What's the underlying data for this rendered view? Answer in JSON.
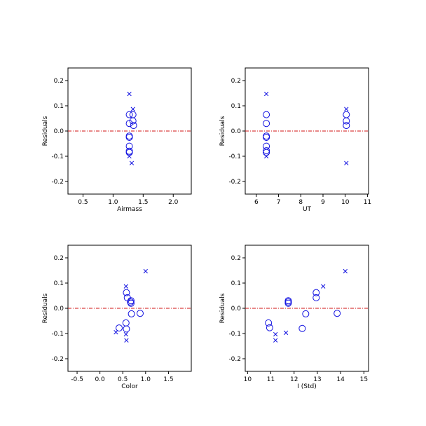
{
  "colors": {
    "points": "#1010e0",
    "zero_line": "#d01010",
    "axes": "#000000"
  },
  "chart_data": [
    {
      "type": "scatter",
      "xlabel": "Airmass",
      "ylabel": "Residuals",
      "xlim": [
        0.25,
        2.3
      ],
      "ylim": [
        -0.25,
        0.25
      ],
      "xticks": [
        0.5,
        1.0,
        1.5,
        2.0
      ],
      "xtick_labels": [
        "0.5",
        "1.0",
        "1.5",
        "2.0"
      ],
      "yticks": [
        -0.2,
        -0.1,
        0.0,
        0.1,
        0.2
      ],
      "ytick_labels": [
        "-0.2",
        "-0.1",
        "0.0",
        "0.1",
        "0.2"
      ],
      "reference_line": 0.0,
      "series": [
        {
          "marker": "circle",
          "x": [
            1.27,
            1.27,
            1.27,
            1.27,
            1.27,
            1.27,
            1.27,
            1.33,
            1.33,
            1.34
          ],
          "y": [
            0.065,
            0.03,
            -0.02,
            -0.025,
            -0.06,
            -0.08,
            -0.085,
            0.065,
            0.04,
            0.022
          ]
        },
        {
          "marker": "x",
          "x": [
            1.27,
            1.33,
            1.27,
            1.31
          ],
          "y": [
            0.147,
            0.087,
            -0.1,
            -0.127
          ]
        }
      ]
    },
    {
      "type": "scatter",
      "xlabel": "UT",
      "ylabel": "Residuals",
      "xlim": [
        5.5,
        11.05
      ],
      "ylim": [
        -0.25,
        0.25
      ],
      "xticks": [
        6,
        7,
        8,
        9,
        10,
        11
      ],
      "xtick_labels": [
        "6",
        "7",
        "8",
        "9",
        "10",
        "11"
      ],
      "yticks": [
        -0.2,
        -0.1,
        0.0,
        0.1,
        0.2
      ],
      "ytick_labels": [
        "-0.2",
        "-0.1",
        "0.0",
        "0.1",
        "0.2"
      ],
      "reference_line": 0.0,
      "series": [
        {
          "marker": "circle",
          "x": [
            6.45,
            6.45,
            6.45,
            6.45,
            6.45,
            6.45,
            6.45,
            10.05,
            10.05,
            10.05
          ],
          "y": [
            0.065,
            0.03,
            -0.02,
            -0.025,
            -0.06,
            -0.078,
            -0.085,
            0.065,
            0.04,
            0.022
          ]
        },
        {
          "marker": "x",
          "x": [
            6.45,
            6.45,
            10.05,
            10.05
          ],
          "y": [
            0.147,
            -0.1,
            0.087,
            -0.127
          ]
        }
      ]
    },
    {
      "type": "scatter",
      "xlabel": "Color",
      "ylabel": "Residuals",
      "xlim": [
        -0.7,
        2.0
      ],
      "ylim": [
        -0.25,
        0.25
      ],
      "xticks": [
        -0.5,
        0.0,
        0.5,
        1.0,
        1.5
      ],
      "xtick_labels": [
        "-0.5",
        "0.0",
        "0.5",
        "1.0",
        "1.5"
      ],
      "yticks": [
        -0.2,
        -0.1,
        0.0,
        0.1,
        0.2
      ],
      "ytick_labels": [
        "-0.2",
        "-0.1",
        "0.0",
        "0.1",
        "0.2"
      ],
      "reference_line": 0.0,
      "series": [
        {
          "marker": "circle",
          "x": [
            0.58,
            0.6,
            0.68,
            0.67,
            0.68,
            0.69,
            0.88,
            0.57,
            0.58,
            0.42
          ],
          "y": [
            0.062,
            0.042,
            0.03,
            0.025,
            0.02,
            -0.022,
            -0.02,
            -0.058,
            -0.082,
            -0.078
          ]
        },
        {
          "marker": "x",
          "x": [
            0.57,
            1.0,
            0.35,
            0.57,
            0.58
          ],
          "y": [
            0.087,
            0.147,
            -0.095,
            -0.103,
            -0.127
          ]
        }
      ]
    },
    {
      "type": "scatter",
      "xlabel": "I (Std)",
      "ylabel": "Residuals",
      "xlim": [
        9.9,
        15.2
      ],
      "ylim": [
        -0.25,
        0.25
      ],
      "xticks": [
        10,
        11,
        12,
        13,
        14,
        15
      ],
      "xtick_labels": [
        "10",
        "11",
        "12",
        "13",
        "14",
        "15"
      ],
      "yticks": [
        -0.2,
        -0.1,
        0.0,
        0.1,
        0.2
      ],
      "ytick_labels": [
        "-0.2",
        "-0.1",
        "0.0",
        "0.1",
        "0.2"
      ],
      "reference_line": 0.0,
      "series": [
        {
          "marker": "circle",
          "x": [
            12.95,
            12.95,
            11.75,
            11.75,
            11.75,
            12.5,
            13.85,
            10.9,
            10.95,
            12.35
          ],
          "y": [
            0.062,
            0.042,
            0.03,
            0.025,
            0.02,
            -0.022,
            -0.02,
            -0.058,
            -0.077,
            -0.08
          ]
        },
        {
          "marker": "x",
          "x": [
            14.2,
            13.25,
            11.2,
            11.65,
            11.2
          ],
          "y": [
            0.147,
            0.087,
            -0.103,
            -0.097,
            -0.127
          ]
        }
      ]
    }
  ]
}
